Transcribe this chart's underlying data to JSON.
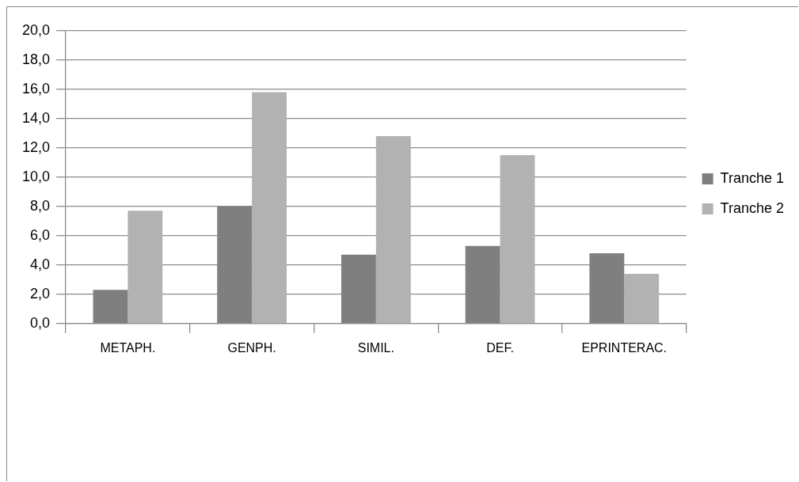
{
  "chart_data": {
    "type": "bar",
    "categories": [
      "METAPH.",
      "GENPH.",
      "SIMIL.",
      "DEF.",
      "EPRINTERAC."
    ],
    "series": [
      {
        "name": "Tranche 1",
        "color": "#7f7f7f",
        "values": [
          2.3,
          8.0,
          4.7,
          5.3,
          4.8
        ]
      },
      {
        "name": "Tranche 2",
        "color": "#b2b2b2",
        "values": [
          7.7,
          15.8,
          12.8,
          11.5,
          3.4
        ]
      }
    ],
    "ylim": [
      0,
      20
    ],
    "yticks": [
      {
        "value": 0,
        "label": "0,0"
      },
      {
        "value": 2,
        "label": "2,0"
      },
      {
        "value": 4,
        "label": "4,0"
      },
      {
        "value": 6,
        "label": "6,0"
      },
      {
        "value": 8,
        "label": "8,0"
      },
      {
        "value": 10,
        "label": "10,0"
      },
      {
        "value": 12,
        "label": "12,0"
      },
      {
        "value": 14,
        "label": "14,0"
      },
      {
        "value": 16,
        "label": "16,0"
      },
      {
        "value": 18,
        "label": "18,0"
      },
      {
        "value": 20,
        "label": "20,0"
      }
    ],
    "grid": "y",
    "legend": "right"
  }
}
